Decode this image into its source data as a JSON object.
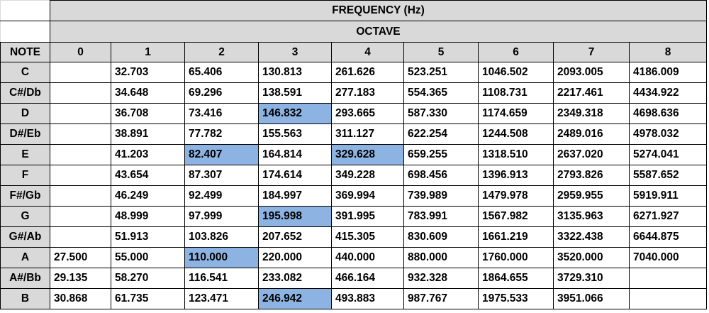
{
  "header": {
    "title": "FREQUENCY (Hz)",
    "subtitle": "OCTAVE",
    "note_label": "NOTE",
    "octaves": [
      "0",
      "1",
      "2",
      "3",
      "4",
      "5",
      "6",
      "7",
      "8"
    ]
  },
  "highlight_color": "#8db3e2",
  "header_color": "#d9d9d9",
  "rows": [
    {
      "note": "C",
      "values": [
        "",
        "32.703",
        "65.406",
        "130.813",
        "261.626",
        "523.251",
        "1046.502",
        "2093.005",
        "4186.009"
      ],
      "highlighted": []
    },
    {
      "note": "C#/Db",
      "values": [
        "",
        "34.648",
        "69.296",
        "138.591",
        "277.183",
        "554.365",
        "1108.731",
        "2217.461",
        "4434.922"
      ],
      "highlighted": []
    },
    {
      "note": "D",
      "values": [
        "",
        "36.708",
        "73.416",
        "146.832",
        "293.665",
        "587.330",
        "1174.659",
        "2349.318",
        "4698.636"
      ],
      "highlighted": [
        3
      ]
    },
    {
      "note": "D#/Eb",
      "values": [
        "",
        "38.891",
        "77.782",
        "155.563",
        "311.127",
        "622.254",
        "1244.508",
        "2489.016",
        "4978.032"
      ],
      "highlighted": []
    },
    {
      "note": "E",
      "values": [
        "",
        "41.203",
        "82.407",
        "164.814",
        "329.628",
        "659.255",
        "1318.510",
        "2637.020",
        "5274.041"
      ],
      "highlighted": [
        2,
        4
      ]
    },
    {
      "note": "F",
      "values": [
        "",
        "43.654",
        "87.307",
        "174.614",
        "349.228",
        "698.456",
        "1396.913",
        "2793.826",
        "5587.652"
      ],
      "highlighted": []
    },
    {
      "note": "F#/Gb",
      "values": [
        "",
        "46.249",
        "92.499",
        "184.997",
        "369.994",
        "739.989",
        "1479.978",
        "2959.955",
        "5919.911"
      ],
      "highlighted": []
    },
    {
      "note": "G",
      "values": [
        "",
        "48.999",
        "97.999",
        "195.998",
        "391.995",
        "783.991",
        "1567.982",
        "3135.963",
        "6271.927"
      ],
      "highlighted": [
        3
      ]
    },
    {
      "note": "G#/Ab",
      "values": [
        "",
        "51.913",
        "103.826",
        "207.652",
        "415.305",
        "830.609",
        "1661.219",
        "3322.438",
        "6644.875"
      ],
      "highlighted": []
    },
    {
      "note": "A",
      "values": [
        "27.500",
        "55.000",
        "110.000",
        "220.000",
        "440.000",
        "880.000",
        "1760.000",
        "3520.000",
        "7040.000"
      ],
      "highlighted": [
        2
      ]
    },
    {
      "note": "A#/Bb",
      "values": [
        "29.135",
        "58.270",
        "116.541",
        "233.082",
        "466.164",
        "932.328",
        "1864.655",
        "3729.310",
        ""
      ],
      "highlighted": []
    },
    {
      "note": "B",
      "values": [
        "30.868",
        "61.735",
        "123.471",
        "246.942",
        "493.883",
        "987.767",
        "1975.533",
        "3951.066",
        ""
      ],
      "highlighted": [
        3
      ]
    }
  ]
}
